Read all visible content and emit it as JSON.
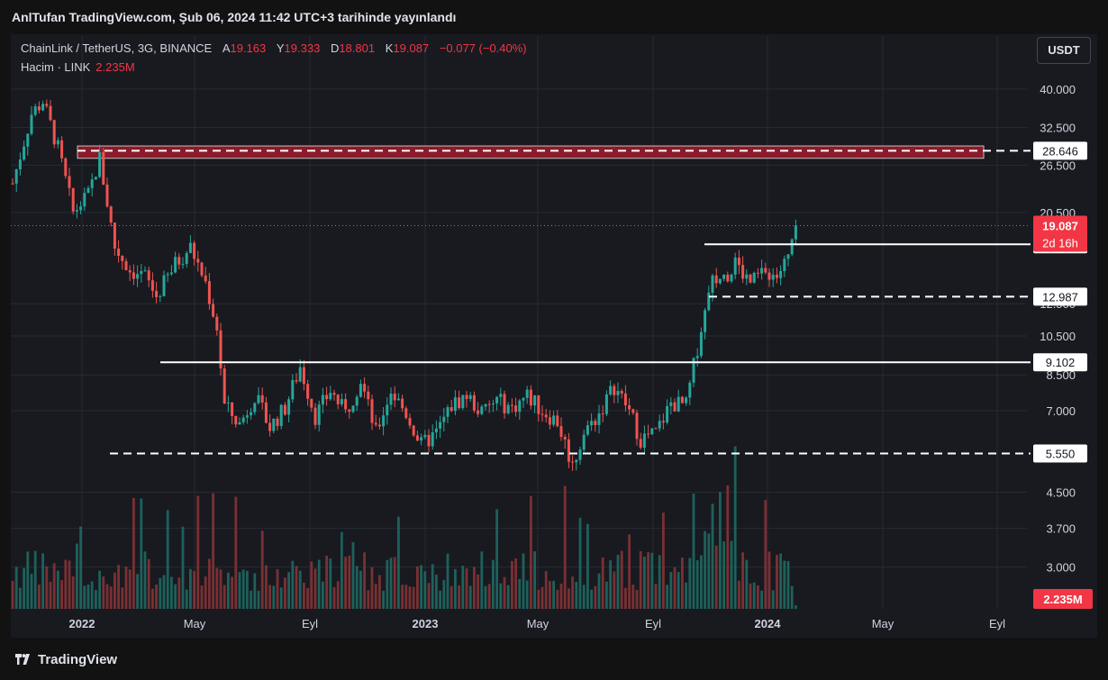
{
  "header": {
    "published": "AnlTufan TradingView.com, Şub 06, 2024 11:42 UTC+3 tarihinde yayınlandı",
    "symbol": "ChainLink / TetherUS, 3G, BINANCE",
    "o_label": "A",
    "o_value": "19.163",
    "h_label": "Y",
    "h_value": "19.333",
    "l_label": "D",
    "l_value": "18.801",
    "c_label": "K",
    "c_value": "19.087",
    "change": "−0.077 (−0.40%)",
    "volume_label": "Hacim · LINK",
    "volume_value": "2.235M",
    "currency": "USDT"
  },
  "footer": {
    "brand": "TradingView"
  },
  "colors": {
    "up": "#26a69a",
    "down": "#ef5350",
    "background": "#181a20",
    "grid": "#262a33",
    "resistance_zone": "#8b1a2b"
  },
  "chart_data": {
    "type": "candlestick",
    "scale": "log",
    "price_ticks": [
      "40.000",
      "32.500",
      "26.500",
      "20.500",
      "12.500",
      "10.500",
      "8.500",
      "7.000",
      "4.500",
      "3.700",
      "3.000"
    ],
    "x_ticks": [
      "2022",
      "May",
      "Eyl",
      "2023",
      "May",
      "Eyl",
      "2024",
      "May",
      "Eyl"
    ],
    "current_price": {
      "value": 19.087,
      "label": "19.087",
      "countdown": "2d 16h"
    },
    "levels": [
      {
        "value": 28.646,
        "label": "28.646",
        "style": "dashed",
        "zone": true
      },
      {
        "value": 17.25,
        "label": "17.250",
        "style": "solid"
      },
      {
        "value": 12.987,
        "label": "12.987",
        "style": "dashed"
      },
      {
        "value": 9.102,
        "label": "9.102",
        "style": "solid"
      },
      {
        "value": 5.55,
        "label": "5.550",
        "style": "dashed"
      }
    ],
    "volume_label": "2.235M",
    "price_path": [
      [
        0,
        24.0
      ],
      [
        5,
        35.0
      ],
      [
        8,
        37.5
      ],
      [
        12,
        29.0
      ],
      [
        16,
        20.5
      ],
      [
        20,
        22.5
      ],
      [
        23,
        27.5
      ],
      [
        27,
        17.0
      ],
      [
        31,
        15.0
      ],
      [
        35,
        14.5
      ],
      [
        38,
        13.0
      ],
      [
        43,
        15.5
      ],
      [
        47,
        17.0
      ],
      [
        51,
        14.0
      ],
      [
        54,
        11.0
      ],
      [
        56,
        7.2
      ],
      [
        60,
        6.5
      ],
      [
        64,
        7.6
      ],
      [
        68,
        6.4
      ],
      [
        72,
        7.1
      ],
      [
        76,
        8.9
      ],
      [
        80,
        6.8
      ],
      [
        84,
        7.8
      ],
      [
        88,
        6.9
      ],
      [
        92,
        8.3
      ],
      [
        96,
        6.2
      ],
      [
        100,
        7.8
      ],
      [
        104,
        6.9
      ],
      [
        108,
        5.8
      ],
      [
        112,
        6.2
      ],
      [
        116,
        7.2
      ],
      [
        120,
        7.6
      ],
      [
        124,
        6.9
      ],
      [
        128,
        7.4
      ],
      [
        132,
        7.1
      ],
      [
        136,
        7.6
      ],
      [
        140,
        7.0
      ],
      [
        144,
        6.6
      ],
      [
        148,
        5.2
      ],
      [
        151,
        6.2
      ],
      [
        155,
        6.9
      ],
      [
        159,
        8.0
      ],
      [
        163,
        7.0
      ],
      [
        166,
        6.0
      ],
      [
        170,
        6.2
      ],
      [
        174,
        7.3
      ],
      [
        178,
        7.2
      ],
      [
        182,
        11.0
      ],
      [
        185,
        14.0
      ],
      [
        188,
        14.5
      ],
      [
        191,
        15.5
      ],
      [
        195,
        14.0
      ],
      [
        199,
        15.0
      ],
      [
        202,
        14.5
      ],
      [
        205,
        16.0
      ],
      [
        207,
        19.1
      ]
    ]
  }
}
